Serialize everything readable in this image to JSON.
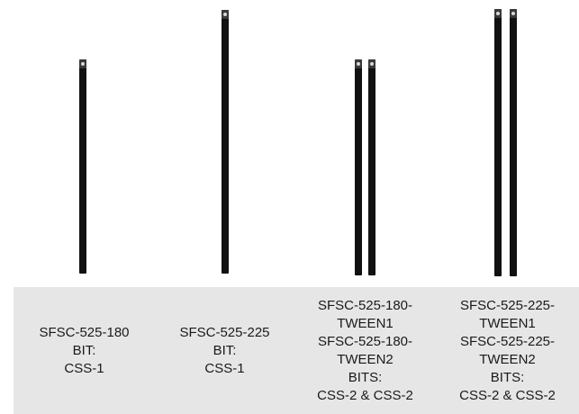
{
  "products": [
    {
      "name_lines": [
        "SFSC-525-180"
      ],
      "bit_label": "BIT:",
      "bit_value": "CSS-1",
      "image_alt": "single-cable-tie-180"
    },
    {
      "name_lines": [
        "SFSC-525-225"
      ],
      "bit_label": "BIT:",
      "bit_value": "CSS-1",
      "image_alt": "single-cable-tie-225"
    },
    {
      "name_lines": [
        "SFSC-525-180-",
        "TWEEN1",
        "SFSC-525-180-",
        "TWEEN2"
      ],
      "bit_label": "BITS:",
      "bit_value": "CSS-2 & CSS-2",
      "image_alt": "double-cable-tie-180"
    },
    {
      "name_lines": [
        "SFSC-525-225-",
        "TWEEN1",
        "SFSC-525-225-",
        "TWEEN2"
      ],
      "bit_label": "BITS:",
      "bit_value": "CSS-2 & CSS-2",
      "image_alt": "double-cable-tie-225"
    }
  ],
  "colors": {
    "caption_background": "#e6e6e6",
    "rod": "#111111",
    "divider": "#8a8a8a"
  }
}
